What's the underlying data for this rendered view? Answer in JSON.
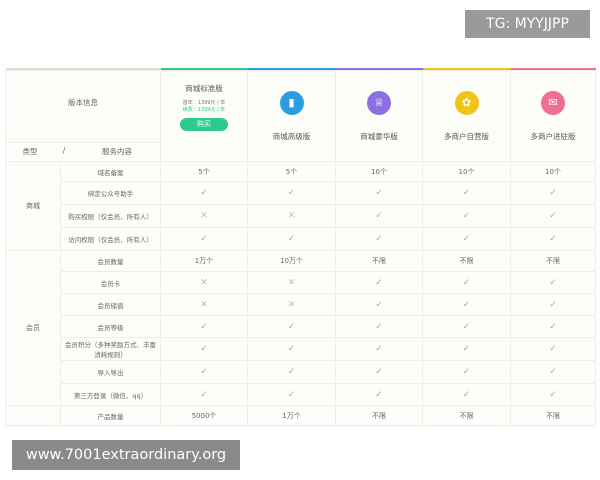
{
  "header": {
    "version_info": "版本信息",
    "type_label": "类型",
    "separator": "/",
    "service_label": "服务内容"
  },
  "plans": [
    {
      "name": "商城标准版",
      "color": "#2dc98f",
      "icon": "none",
      "first_year": "首年：1399元 / 年",
      "renewal": "续费：1399元 / 年",
      "buy_label": "购买"
    },
    {
      "name": "商城高级版",
      "color": "#2a9fe0",
      "icon": "bookmark-icon"
    },
    {
      "name": "商城豪华版",
      "color": "#8d6fe0",
      "icon": "crown-icon"
    },
    {
      "name": "多商户自营版",
      "color": "#f0c419",
      "icon": "medal-icon"
    },
    {
      "name": "多商户进驻版",
      "color": "#ee6f92",
      "icon": "message-icon"
    }
  ],
  "groups": [
    {
      "type": "商城",
      "rows": [
        {
          "service": "域名备案",
          "values": [
            "5个",
            "5个",
            "10个",
            "10个",
            "10个"
          ]
        },
        {
          "service": "绑定公众号助手",
          "values": [
            "check",
            "check",
            "check",
            "check",
            "check"
          ]
        },
        {
          "service": "购买权限（仅会员、所有人）",
          "values": [
            "cross",
            "cross",
            "check",
            "check",
            "check"
          ]
        },
        {
          "service": "访问权限（仅会员、所有人）",
          "values": [
            "check",
            "check",
            "check",
            "check",
            "check"
          ]
        }
      ]
    },
    {
      "type": "会员",
      "rows": [
        {
          "service": "会员数量",
          "values": [
            "1万个",
            "10万个",
            "不限",
            "不限",
            "不限"
          ]
        },
        {
          "service": "会员卡",
          "values": [
            "cross",
            "cross",
            "check",
            "check",
            "check"
          ]
        },
        {
          "service": "会员储值",
          "values": [
            "cross",
            "cross",
            "check",
            "check",
            "check"
          ]
        },
        {
          "service": "会员等级",
          "values": [
            "check",
            "check",
            "check",
            "check",
            "check"
          ]
        },
        {
          "service": "会员积分（多种奖励方式、丰富消耗规则）",
          "values": [
            "check",
            "check",
            "check",
            "check",
            "check"
          ]
        },
        {
          "service": "导入导出",
          "values": [
            "check",
            "check",
            "check",
            "check",
            "check"
          ]
        },
        {
          "service": "第三方登录（微信、qq）",
          "values": [
            "check",
            "check",
            "check",
            "check",
            "check"
          ]
        }
      ]
    },
    {
      "type": "",
      "rows": [
        {
          "service": "产品数量",
          "values": [
            "5000个",
            "1万个",
            "不限",
            "不限",
            "不限"
          ]
        }
      ]
    }
  ],
  "watermarks": {
    "top": "TG: MYYJJPP",
    "bottom": "www.7001extraordinary.org"
  }
}
